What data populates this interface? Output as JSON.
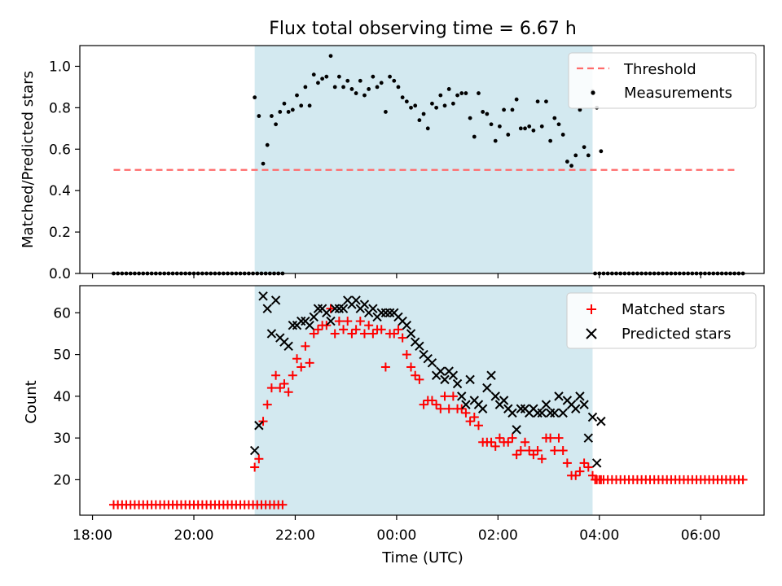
{
  "chart_data": [
    {
      "type": "scatter",
      "title": "Flux total observing time = 6.67 h",
      "ylabel": "Matched/Predicted stars",
      "xlabel": "",
      "ylim": [
        0,
        1.1
      ],
      "yticks": [
        "0.0",
        "0.2",
        "0.4",
        "0.6",
        "0.8",
        "1.0"
      ],
      "grid": false,
      "legend_position": "top-right",
      "observing_window_shaded": [
        "21:12",
        "03:52"
      ],
      "shade_color": "#d3e9f0",
      "series": [
        {
          "name": "Threshold",
          "style": "dashed-line",
          "color": "#ff6b6b",
          "x": [
            "18:25",
            "06:40"
          ],
          "y": [
            0.5,
            0.5
          ]
        },
        {
          "name": "Measurements",
          "style": "dot",
          "color": "#000000",
          "segments": [
            {
              "start": "18:25",
              "step_min": 5,
              "values": [
                0,
                0,
                0,
                0,
                0,
                0,
                0,
                0,
                0,
                0,
                0,
                0,
                0,
                0,
                0,
                0,
                0,
                0,
                0,
                0,
                0,
                0,
                0,
                0,
                0,
                0,
                0,
                0,
                0,
                0,
                0,
                0,
                0,
                0,
                0,
                0,
                0,
                0,
                0,
                0,
                0
              ]
            },
            {
              "start": "21:12",
              "step_min": 5,
              "values": [
                0.85,
                0.76,
                0.53,
                0.62,
                0.76,
                0.72,
                0.78,
                0.82,
                0.78,
                0.79,
                0.86,
                0.81,
                0.9,
                0.81,
                0.96,
                0.92,
                0.94,
                0.95,
                1.05,
                0.9,
                0.95,
                0.9,
                0.93,
                0.89,
                0.87,
                0.93,
                0.86,
                0.89,
                0.95,
                0.9,
                0.92,
                0.78,
                0.95,
                0.93,
                0.9,
                0.85,
                0.83,
                0.8,
                0.81,
                0.74,
                0.77,
                0.7,
                0.82,
                0.8,
                0.86,
                0.81,
                0.89,
                0.82,
                0.86,
                0.87,
                0.87,
                0.75,
                0.66,
                0.87,
                0.78,
                0.77,
                0.72,
                0.64,
                0.71,
                0.79,
                0.67,
                0.79,
                0.84,
                0.7,
                0.7,
                0.71,
                0.69,
                0.83,
                0.71,
                0.83,
                0.64,
                0.75,
                0.72,
                0.67,
                0.54,
                0.52,
                0.57,
                0.79,
                0.61,
                0.57,
                0.88,
                0.8,
                0.59
              ]
            },
            {
              "start": "03:55",
              "step_min": 5,
              "values": [
                0,
                0,
                0,
                0,
                0,
                0,
                0,
                0,
                0,
                0,
                0,
                0,
                0,
                0,
                0,
                0,
                0,
                0,
                0,
                0,
                0,
                0,
                0,
                0,
                0,
                0,
                0,
                0,
                0,
                0,
                0,
                0,
                0,
                0,
                0,
                0
              ]
            }
          ]
        }
      ]
    },
    {
      "type": "scatter",
      "title": "",
      "xlabel": "Time (UTC)",
      "ylabel": "Count",
      "ylim": [
        11.5,
        66.5
      ],
      "yticks": [
        "20",
        "30",
        "40",
        "50",
        "60"
      ],
      "xticks": [
        "18:00",
        "20:00",
        "22:00",
        "00:00",
        "02:00",
        "04:00",
        "06:00"
      ],
      "xlim": [
        "17:45",
        "07:15"
      ],
      "grid": false,
      "legend_position": "top-right",
      "observing_window_shaded": [
        "21:12",
        "03:52"
      ],
      "shade_color": "#d3e9f0",
      "series": [
        {
          "name": "Matched stars",
          "style": "plus",
          "color": "#ff0000",
          "segments": [
            {
              "start": "18:25",
              "step_min": 5,
              "values": [
                14,
                14,
                14,
                14,
                14,
                14,
                14,
                14,
                14,
                14,
                14,
                14,
                14,
                14,
                14,
                14,
                14,
                14,
                14,
                14,
                14,
                14,
                14,
                14,
                14,
                14,
                14,
                14,
                14,
                14,
                14,
                14,
                14,
                14,
                14,
                14,
                14,
                14,
                14,
                14,
                14
              ]
            },
            {
              "start": "21:12",
              "step_min": 5,
              "values": [
                23,
                25,
                34,
                38,
                42,
                45,
                42,
                43,
                41,
                45,
                49,
                47,
                52,
                48,
                55,
                56,
                57,
                57,
                61,
                55,
                58,
                56,
                58,
                55,
                56,
                58,
                55,
                57,
                55,
                56,
                56,
                47,
                55,
                55,
                56,
                54,
                50,
                47,
                45,
                44,
                38,
                39,
                39,
                38,
                37,
                40,
                37,
                40,
                37,
                37,
                36,
                34,
                35,
                33,
                29,
                29,
                29,
                28,
                30,
                29,
                29,
                30,
                26,
                27,
                29,
                27,
                26,
                27,
                25,
                30,
                30,
                27,
                30,
                27,
                24,
                21,
                21,
                22,
                24,
                23,
                21,
                20,
                20
              ]
            },
            {
              "start": "03:55",
              "step_min": 5,
              "values": [
                20,
                20,
                20,
                20,
                20,
                20,
                20,
                20,
                20,
                20,
                20,
                20,
                20,
                20,
                20,
                20,
                20,
                20,
                20,
                20,
                20,
                20,
                20,
                20,
                20,
                20,
                20,
                20,
                20,
                20,
                20,
                20,
                20,
                20,
                20,
                20
              ]
            }
          ]
        },
        {
          "name": "Predicted stars",
          "style": "x",
          "color": "#000000",
          "segments": [
            {
              "start": "21:12",
              "step_min": 5,
              "values": [
                27,
                33,
                64,
                61,
                55,
                63,
                54,
                53,
                52,
                57,
                57,
                58,
                58,
                57,
                59,
                61,
                61,
                60,
                58,
                61,
                61,
                61,
                63,
                62,
                63,
                61,
                62,
                60,
                61,
                59,
                60,
                60,
                60,
                60,
                59,
                58,
                57,
                55,
                53,
                52,
                50,
                49,
                48,
                45,
                46,
                44,
                46,
                45,
                43,
                40,
                38,
                44,
                39,
                38,
                37,
                42,
                45,
                40,
                38,
                39,
                37,
                36,
                32,
                37,
                37,
                36,
                37,
                36,
                36,
                38,
                36,
                36,
                40,
                36,
                39,
                38,
                37,
                40,
                38,
                30,
                35,
                24,
                34
              ]
            }
          ]
        }
      ]
    }
  ]
}
